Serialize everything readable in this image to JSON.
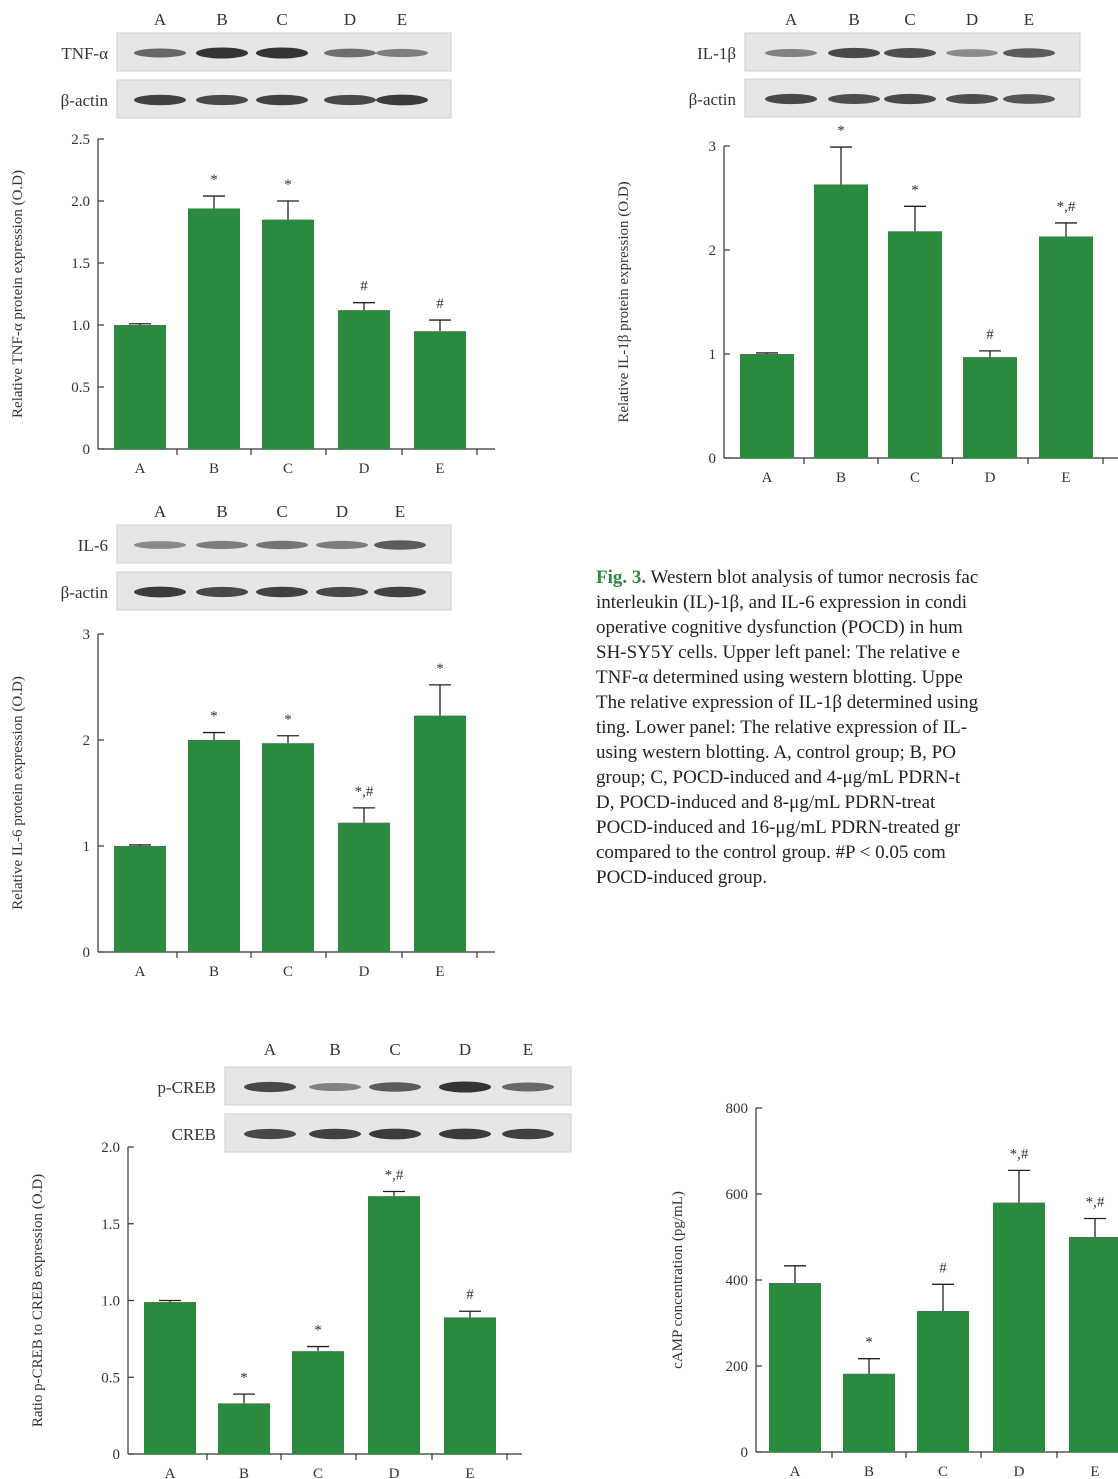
{
  "colors": {
    "bar": "#2a8a3e",
    "blot_bg": "#e6e6e6",
    "band": "#2a2a2a",
    "fig_label": "#2e8b3e"
  },
  "caption": {
    "label": "Fig. 3.",
    "text": " Western blot analysis of tumor necrosis fac\ninterleukin (IL)-1β, and IL-6 expression in condi\noperative cognitive dysfunction (POCD) in hum\nSH-SY5Y cells. Upper left panel: The relative e\nTNF-α determined using western blotting. Uppe\nThe relative expression of IL-1β determined using\nting. Lower panel: The relative expression of IL-\nusing western blotting. A, control group; B, PO\ngroup; C, POCD-induced and 4-μg/mL PDRN-t\nD, POCD-induced and 8-μg/mL PDRN-treat\nPOCD-induced and 16-μg/mL PDRN-treated gr\ncompared to the control group. #P < 0.05 com\nPOCD-induced group."
  },
  "chart_data": [
    {
      "id": "tnf",
      "type": "bar",
      "blot_target": "TNF-α",
      "blot_control": "β-actin",
      "band_intensity": [
        [
          0.6,
          1.0,
          1.0,
          0.55,
          0.45
        ],
        [
          0.9,
          0.85,
          0.9,
          0.85,
          0.95
        ]
      ],
      "categories": [
        "A",
        "B",
        "C",
        "D",
        "E"
      ],
      "values": [
        1.0,
        1.94,
        1.85,
        1.12,
        0.95
      ],
      "errors": [
        0.01,
        0.1,
        0.15,
        0.06,
        0.09
      ],
      "sig": [
        "",
        "*",
        "*",
        "#",
        "#"
      ],
      "ylabel": "Relative TNF-α protein expression (O.D)",
      "yticks": [
        0,
        0.5,
        1.0,
        1.5,
        2.0,
        2.5
      ],
      "ytick_labels": [
        "0",
        "0.5",
        "1.0",
        "1.5",
        "2.0",
        "2.5"
      ],
      "ylim": [
        0,
        2.5
      ]
    },
    {
      "id": "il1b",
      "type": "bar",
      "blot_target": "IL-1β",
      "blot_control": "β-actin",
      "band_intensity": [
        [
          0.4,
          0.85,
          0.8,
          0.35,
          0.7
        ],
        [
          0.85,
          0.8,
          0.85,
          0.8,
          0.75
        ]
      ],
      "categories": [
        "A",
        "B",
        "C",
        "D",
        "E"
      ],
      "values": [
        1.0,
        2.63,
        2.18,
        0.97,
        2.13
      ],
      "errors": [
        0.01,
        0.36,
        0.24,
        0.06,
        0.13
      ],
      "sig": [
        "",
        "*",
        "*",
        "#",
        "*,#"
      ],
      "ylabel": "Relative IL-1β protein expression (O.D)",
      "yticks": [
        0,
        1,
        2,
        3
      ],
      "ytick_labels": [
        "0",
        "1",
        "2",
        "3"
      ],
      "ylim": [
        0,
        3
      ]
    },
    {
      "id": "il6",
      "type": "bar",
      "blot_target": "IL-6",
      "blot_control": "β-actin",
      "band_intensity": [
        [
          0.35,
          0.45,
          0.5,
          0.45,
          0.7
        ],
        [
          0.95,
          0.85,
          0.9,
          0.85,
          0.9
        ]
      ],
      "categories": [
        "A",
        "B",
        "C",
        "D",
        "E"
      ],
      "values": [
        1.0,
        2.0,
        1.97,
        1.22,
        2.23
      ],
      "errors": [
        0.01,
        0.07,
        0.07,
        0.14,
        0.29
      ],
      "sig": [
        "",
        "*",
        "*",
        "*,#",
        "*"
      ],
      "ylabel": "Relative IL-6 protein expression (O.D)",
      "yticks": [
        0,
        1,
        2,
        3
      ],
      "ytick_labels": [
        "0",
        "1",
        "2",
        "3"
      ],
      "ylim": [
        0,
        3
      ]
    },
    {
      "id": "creb",
      "type": "bar",
      "blot_target": "p-CREB",
      "blot_control": "CREB",
      "band_intensity": [
        [
          0.85,
          0.4,
          0.7,
          1.0,
          0.6
        ],
        [
          0.85,
          0.9,
          0.95,
          0.95,
          0.9
        ]
      ],
      "categories": [
        "A",
        "B",
        "C",
        "D",
        "E"
      ],
      "values": [
        0.99,
        0.33,
        0.67,
        1.68,
        0.89
      ],
      "errors": [
        0.01,
        0.06,
        0.03,
        0.03,
        0.04
      ],
      "sig": [
        "",
        "*",
        "*",
        "*,#",
        "#"
      ],
      "ylabel": "Ratio p-CREB to CREB expression (O.D)",
      "yticks": [
        0,
        0.5,
        1.0,
        1.5,
        2.0
      ],
      "ytick_labels": [
        "0",
        "0.5",
        "1.0",
        "1.5",
        "2.0"
      ],
      "ylim": [
        0,
        2.0
      ]
    },
    {
      "id": "camp",
      "type": "bar",
      "categories": [
        "A",
        "B",
        "C",
        "D",
        "E"
      ],
      "values": [
        393,
        182,
        328,
        580,
        500
      ],
      "errors": [
        40,
        35,
        62,
        75,
        43
      ],
      "sig": [
        "",
        "*",
        "#",
        "*,#",
        "*,#"
      ],
      "ylabel": "cAMP concentration (pg/mL)",
      "yticks": [
        0,
        200,
        400,
        600,
        800
      ],
      "ytick_labels": [
        "0",
        "200",
        "400",
        "600",
        "800"
      ],
      "ylim": [
        0,
        800
      ]
    }
  ]
}
